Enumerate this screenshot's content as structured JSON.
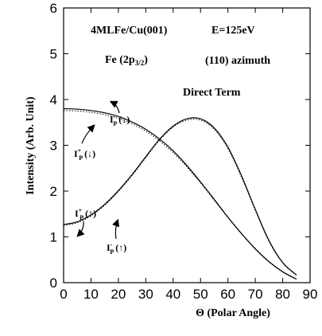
{
  "chart_data": {
    "type": "line",
    "xlabel": "Θ (Polar Angle)",
    "ylabel": "Intensity (Arb. Unit)",
    "xlim": [
      0,
      90
    ],
    "ylim": [
      0,
      6
    ],
    "xticks": [
      0,
      10,
      20,
      30,
      40,
      50,
      60,
      70,
      80,
      90
    ],
    "yticks": [
      0,
      1,
      2,
      3,
      4,
      5,
      6
    ],
    "grid": false,
    "annotations": {
      "system": "4MLFe/Cu(001)",
      "energy": "E=125eV",
      "level_main": "Fe (2p",
      "level_sub": "3/2",
      "level_close": ")",
      "azimuth": "(110) azimuth",
      "term": "Direct Term",
      "label_minus_down": "I",
      "label_minus_down_sup": "-",
      "label_minus_down_sub": "P",
      "label_minus_down_arrow": "(↓)",
      "label_plus_down": "I",
      "label_plus_down_sup": "+",
      "label_plus_down_sub": "P",
      "label_plus_down_arrow": "(↓)",
      "label_plus_up": "I",
      "label_plus_up_sup": "+",
      "label_plus_up_sub": "P",
      "label_plus_up_arrow": "(↑)",
      "label_minus_up": "I",
      "label_minus_up_sup": "-",
      "label_minus_up_sub": "P",
      "label_minus_up_arrow": "(↑)"
    },
    "series": [
      {
        "id": "down_solid",
        "style": "solid",
        "x": [
          0,
          5,
          10,
          15,
          20,
          25,
          30,
          35,
          40,
          45,
          50,
          55,
          60,
          65,
          70,
          75,
          80,
          85
        ],
        "y": [
          3.8,
          3.79,
          3.76,
          3.71,
          3.63,
          3.51,
          3.35,
          3.14,
          2.88,
          2.56,
          2.2,
          1.82,
          1.43,
          1.07,
          0.74,
          0.46,
          0.24,
          0.08
        ]
      },
      {
        "id": "down_dotted",
        "style": "dotted",
        "x": [
          0,
          5,
          10,
          15,
          20,
          25,
          30,
          35,
          40,
          45,
          50,
          55,
          60,
          65,
          70,
          75,
          80,
          85
        ],
        "y": [
          3.76,
          3.75,
          3.72,
          3.67,
          3.59,
          3.47,
          3.31,
          3.1,
          2.84,
          2.53,
          2.18,
          1.8,
          1.42,
          1.06,
          0.73,
          0.45,
          0.23,
          0.07
        ]
      },
      {
        "id": "up_solid",
        "style": "solid",
        "x": [
          0,
          5,
          10,
          15,
          20,
          25,
          30,
          35,
          40,
          45,
          50,
          55,
          60,
          65,
          70,
          75,
          80,
          85
        ],
        "y": [
          1.27,
          1.33,
          1.48,
          1.71,
          2.01,
          2.36,
          2.75,
          3.13,
          3.42,
          3.58,
          3.58,
          3.38,
          2.96,
          2.33,
          1.6,
          0.92,
          0.44,
          0.17
        ]
      },
      {
        "id": "up_dotted",
        "style": "dotted",
        "x": [
          0,
          5,
          10,
          15,
          20,
          25,
          30,
          35,
          40,
          45,
          50,
          55,
          60,
          65,
          70,
          75,
          80,
          85
        ],
        "y": [
          1.25,
          1.31,
          1.46,
          1.69,
          1.99,
          2.34,
          2.73,
          3.11,
          3.4,
          3.55,
          3.55,
          3.35,
          2.93,
          2.3,
          1.58,
          0.9,
          0.43,
          0.16
        ]
      }
    ]
  }
}
